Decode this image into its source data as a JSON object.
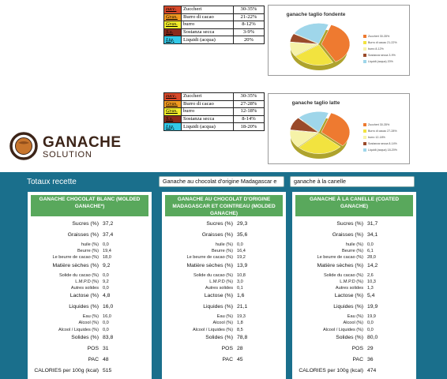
{
  "ingredients_fondente": [
    {
      "code": "zucc.",
      "name": "Zuccheri",
      "pct": "30-35%",
      "color": "#d8492a"
    },
    {
      "code": "Gras.",
      "name": "Burro di cacao",
      "pct": "21-22%",
      "color": "#f39a1f"
    },
    {
      "code": "Gras.",
      "name": "burro",
      "pct": "8-12%",
      "color": "#f1ec2a"
    },
    {
      "code": "S.s.",
      "name": "Sostanza secca",
      "pct": "3-9%",
      "color": "#8b2a1a"
    },
    {
      "code": "Liq.",
      "name": "Liquidi (acqua)",
      "pct": "20%",
      "color": "#33c9e8"
    }
  ],
  "ingredients_latte": [
    {
      "code": "zucc.",
      "name": "Zuccheri",
      "pct": "30-35%",
      "color": "#d8492a"
    },
    {
      "code": "Gras.",
      "name": "Burro di cacao",
      "pct": "27-28%",
      "color": "#f39a1f"
    },
    {
      "code": "Gras.",
      "name": "burro",
      "pct": "12-18%",
      "color": "#f1ec2a"
    },
    {
      "code": "S.s.",
      "name": "Sostanza secca",
      "pct": "8-14%",
      "color": "#8b2a1a"
    },
    {
      "code": "Liq.",
      "name": "Liquidi (acqua)",
      "pct": "18-20%",
      "color": "#33c9e8"
    }
  ],
  "chart_data": [
    {
      "type": "pie",
      "title": "ganache taglio fondente",
      "categories": [
        "Zuccheri 30-35%",
        "Burro di cacao 21-22%",
        "burro 8-12%",
        "Sostanza secca 3-9%",
        "Liquidi (acqua) 20%"
      ],
      "values": [
        32.5,
        21.5,
        10,
        6,
        20
      ],
      "colors": [
        "#ee7a30",
        "#f2e33f",
        "#f6f2a8",
        "#9a4a2a",
        "#9fd6ea"
      ],
      "legend": "right"
    },
    {
      "type": "pie",
      "title": "ganache taglio latte",
      "categories": [
        "Zuccheri 30-35%",
        "Burro di cacao 27-28%",
        "burro 12-18%",
        "Sostanza secca 8-14%",
        "Liquidi (acqua) 18-20%"
      ],
      "values": [
        32.5,
        27.5,
        15,
        11,
        19
      ],
      "colors": [
        "#ee7a30",
        "#f2e33f",
        "#f6f2a8",
        "#9a4a2a",
        "#9fd6ea"
      ],
      "legend": "right"
    }
  ],
  "logo": {
    "line1": "GANACHE",
    "line2": "SOLUTION"
  },
  "panel": {
    "title": "Totaux recette",
    "input1": "Ganache au chocolat d'origine Madagascar e",
    "input2": "ganache à la canelle"
  },
  "recipes": [
    {
      "header": "GANACHE CHOCOLAT BLANC (MOLDED GANACHE*)",
      "rows": [
        {
          "label": "Sucres (%)",
          "value": "37,2",
          "size": "big"
        },
        {
          "label": "Graisses (%)",
          "value": "37,4",
          "size": "big"
        },
        {
          "label": "huile (%)",
          "value": "0,0",
          "size": "small"
        },
        {
          "label": "Beurre (%)",
          "value": "19,4",
          "size": "small"
        },
        {
          "label": "Le beurre de cacao (%)",
          "value": "18,0",
          "size": "small"
        },
        {
          "label": "Matière sèches (%)",
          "value": "9,2",
          "size": "big"
        },
        {
          "label": "Solide du cacao (%)",
          "value": "0,0",
          "size": "small"
        },
        {
          "label": "L.M.P.D (%)",
          "value": "9,2",
          "size": "small"
        },
        {
          "label": "Autres solides",
          "value": "0,0",
          "size": "small"
        },
        {
          "label": "Lactose (%)",
          "value": "4,8",
          "size": "big"
        },
        {
          "label": "Liquides (%)",
          "value": "16,0",
          "size": "big"
        },
        {
          "label": "Eau (%)",
          "value": "16,0",
          "size": "small"
        },
        {
          "label": "Alcool (%)",
          "value": "0,0",
          "size": "small"
        },
        {
          "label": "Alcool / Liquides (%)",
          "value": "0,0",
          "size": "small"
        },
        {
          "label": "Solides (%)",
          "value": "83,8",
          "size": "big"
        },
        {
          "label": "POS",
          "value": "31",
          "size": "big"
        },
        {
          "label": "PAC",
          "value": "48",
          "size": "big"
        },
        {
          "label": "CALORIES per 100g (kcal)",
          "value": "515",
          "size": "big"
        }
      ]
    },
    {
      "header": "GANACHE AU CHOCOLAT D'ORIGINE MADAGASCAR ET COINTREAU (MOLDED GANACHE)",
      "rows": [
        {
          "label": "Sucres (%)",
          "value": "29,3",
          "size": "big"
        },
        {
          "label": "Graisses (%)",
          "value": "35,6",
          "size": "big"
        },
        {
          "label": "huile (%)",
          "value": "0,0",
          "size": "small"
        },
        {
          "label": "Beurre (%)",
          "value": "16,4",
          "size": "small"
        },
        {
          "label": "Le beurre de cacao (%)",
          "value": "19,2",
          "size": "small"
        },
        {
          "label": "Matière sèches (%)",
          "value": "13,9",
          "size": "big"
        },
        {
          "label": "Solide du cacao (%)",
          "value": "10,8",
          "size": "small"
        },
        {
          "label": "L.M.P.D (%)",
          "value": "3,0",
          "size": "small"
        },
        {
          "label": "Autres solides",
          "value": "0,1",
          "size": "small"
        },
        {
          "label": "Lactose (%)",
          "value": "1,6",
          "size": "big"
        },
        {
          "label": "Liquides (%)",
          "value": "21,1",
          "size": "big"
        },
        {
          "label": "Eau (%)",
          "value": "19,3",
          "size": "small"
        },
        {
          "label": "Alcool (%)",
          "value": "1,8",
          "size": "small"
        },
        {
          "label": "Alcool / Liquides (%)",
          "value": "8,5",
          "size": "small"
        },
        {
          "label": "Solides (%)",
          "value": "78,8",
          "size": "big"
        },
        {
          "label": "POS",
          "value": "28",
          "size": "big"
        },
        {
          "label": "PAC",
          "value": "45",
          "size": "big"
        }
      ]
    },
    {
      "header": "GANACHE À LA CANELLE (COATED GANACHE)",
      "rows": [
        {
          "label": "Sucres (%)",
          "value": "31,7",
          "size": "big"
        },
        {
          "label": "Graisses (%)",
          "value": "34,1",
          "size": "big"
        },
        {
          "label": "huile (%)",
          "value": "0,0",
          "size": "small"
        },
        {
          "label": "Beurre (%)",
          "value": "6,1",
          "size": "small"
        },
        {
          "label": "Le beurre de cacao (%)",
          "value": "28,0",
          "size": "small"
        },
        {
          "label": "Matière sèches (%)",
          "value": "14,2",
          "size": "big"
        },
        {
          "label": "Solide du cacao (%)",
          "value": "2,6",
          "size": "small"
        },
        {
          "label": "L.M.P.D (%)",
          "value": "10,3",
          "size": "small"
        },
        {
          "label": "Autres solides",
          "value": "1,3",
          "size": "small"
        },
        {
          "label": "Lactose (%)",
          "value": "5,4",
          "size": "big"
        },
        {
          "label": "Liquides (%)",
          "value": "19,9",
          "size": "big"
        },
        {
          "label": "Eau (%)",
          "value": "19,9",
          "size": "small"
        },
        {
          "label": "Alcool (%)",
          "value": "0,0",
          "size": "small"
        },
        {
          "label": "Alcool / Liquides (%)",
          "value": "0,0",
          "size": "small"
        },
        {
          "label": "Solides (%)",
          "value": "80,0",
          "size": "big"
        },
        {
          "label": "POS",
          "value": "29",
          "size": "big"
        },
        {
          "label": "PAC",
          "value": "36",
          "size": "big"
        },
        {
          "label": "CALORIES per 100g (kcal)",
          "value": "474",
          "size": "big"
        }
      ]
    }
  ]
}
